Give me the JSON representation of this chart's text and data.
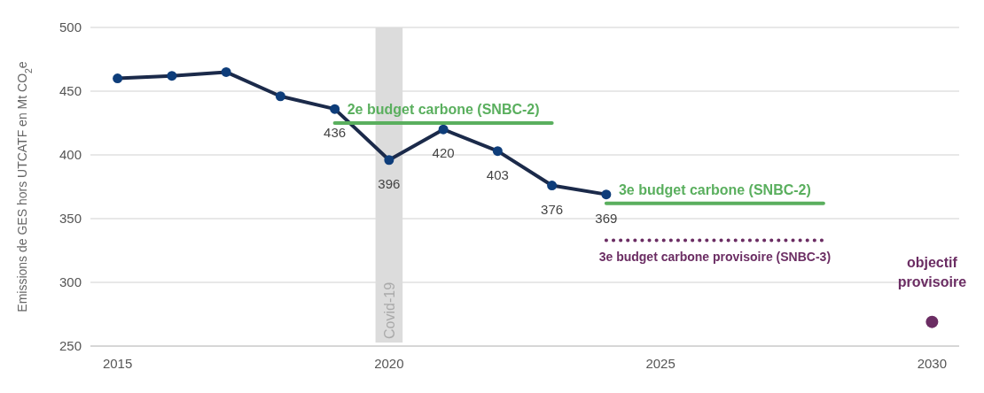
{
  "chart_data": {
    "type": "line",
    "ylabel": "Emissions de GES hors UTCATF en Mt CO$_{2}$e",
    "x": [
      2015,
      2016,
      2017,
      2018,
      2019,
      2020,
      2021,
      2022,
      2023,
      2024
    ],
    "xlim": [
      2014.5,
      2030.5
    ],
    "xticks": [
      2015,
      2020,
      2025,
      2030
    ],
    "ylim": [
      250,
      500
    ],
    "yticks": [
      250,
      300,
      350,
      400,
      450,
      500
    ],
    "grid": "y",
    "marker": "circle",
    "series": [
      {
        "color": "#1b2a4a",
        "values": [
          460,
          462,
          465,
          446,
          436,
          396,
          420,
          403,
          376,
          369
        ],
        "value_labels": [
          null,
          null,
          null,
          null,
          "436",
          "396",
          "420",
          "403",
          "376",
          "369"
        ]
      },
      {
        "name": "2e budget carbone (SNBC-2)",
        "color": "#5aaf5e",
        "x": [
          2019,
          2023
        ],
        "values": [
          425,
          425
        ],
        "marker": "none"
      },
      {
        "name": "3e budget carbone (SNBC-2)",
        "color": "#5aaf5e",
        "x": [
          2024,
          2028
        ],
        "values": [
          362,
          362
        ],
        "marker": "none"
      },
      {
        "name": "3e budget carbone provisoire (SNBC-3)",
        "color": "#6b2d63",
        "x": [
          2024,
          2028
        ],
        "values": [
          333,
          333
        ],
        "marker": "none",
        "line_style": "dotted"
      },
      {
        "name": "objectif provisoire",
        "type": "scatter",
        "color": "#6b2d63",
        "x": [
          2030
        ],
        "values": [
          269
        ]
      }
    ],
    "bands": [
      {
        "axis": "x",
        "from": 2019.75,
        "to": 2020.25,
        "label": "Covid-19",
        "color": "#dcdcdc"
      }
    ]
  }
}
